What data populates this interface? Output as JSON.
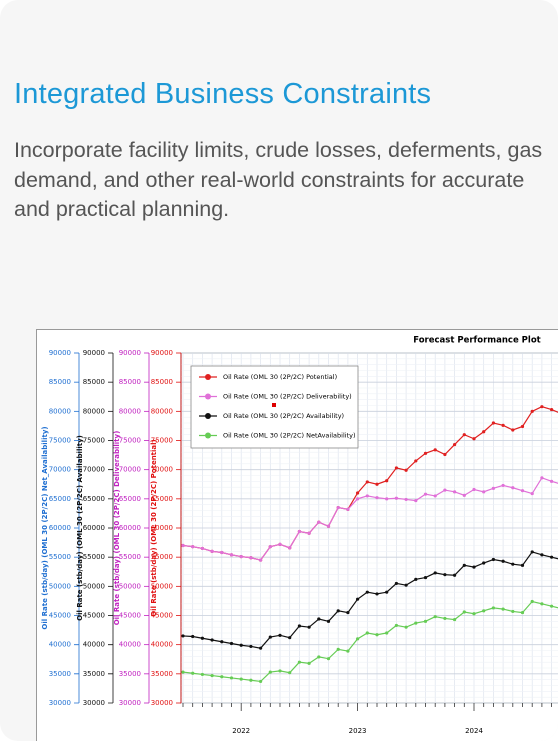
{
  "card": {
    "title": "Integrated Business Constraints",
    "description": "Incorporate facility limits, crude losses, deferments, gas demand, and other real-world constraints for accurate and practical planning."
  },
  "chart_data": {
    "type": "line",
    "title": "Forecast Performance Plot",
    "categories": [
      null,
      null,
      null,
      null,
      null,
      null,
      "2022",
      null,
      null,
      null,
      null,
      null,
      null,
      null,
      null,
      null,
      null,
      null,
      "2023",
      null,
      null,
      null,
      null,
      null,
      null,
      null,
      null,
      null,
      null,
      null,
      "2024",
      null,
      null,
      null,
      null,
      null,
      null,
      null,
      null,
      null
    ],
    "y_axes": [
      {
        "label": "Oil Rate (stb/day) (OML 30 (2P/2C) Net_Availability)",
        "color": "#1f6fd1",
        "ylim": [
          30000,
          90000
        ],
        "yticks": [
          30000,
          35000,
          40000,
          45000,
          50000,
          55000,
          60000,
          65000,
          70000,
          75000,
          80000,
          85000,
          90000
        ]
      },
      {
        "label": "Oil Rate (stb/day) (OML 30 (2P/2C) Availability)",
        "color": "#111111",
        "ylim": [
          30000,
          90000
        ],
        "yticks": [
          30000,
          35000,
          40000,
          45000,
          50000,
          55000,
          60000,
          65000,
          70000,
          75000,
          80000,
          85000,
          90000
        ]
      },
      {
        "label": "Oil Rate (stb/day) (OML 30 (2P/2C) Deliverability)",
        "color": "#c020c0",
        "ylim": [
          30000,
          90000
        ],
        "yticks": [
          30000,
          35000,
          40000,
          45000,
          50000,
          55000,
          60000,
          65000,
          70000,
          75000,
          80000,
          85000,
          90000
        ]
      },
      {
        "label": "Oil Rate (stb/day) (OML 30 (2P/2C) Potential)",
        "color": "#e01010",
        "ylim": [
          30000,
          90000
        ],
        "yticks": [
          30000,
          35000,
          40000,
          45000,
          50000,
          55000,
          60000,
          65000,
          70000,
          75000,
          80000,
          85000,
          90000
        ]
      }
    ],
    "grid": true,
    "series": [
      {
        "name": "Oil Rate (OML 30 (2P/2C) Potential)",
        "color": "#e02020",
        "values": [
          57000,
          56800,
          56500,
          56000,
          55800,
          55400,
          55100,
          54900,
          54500,
          56800,
          57200,
          56600,
          59400,
          59100,
          61000,
          60300,
          63500,
          63200,
          66000,
          67900,
          67500,
          68100,
          70300,
          69900,
          71500,
          72800,
          73400,
          72600,
          74300,
          76000,
          75300,
          76500,
          78000,
          77600,
          76800,
          77400,
          80000,
          80800,
          80300,
          79600
        ]
      },
      {
        "name": "Oil Rate (OML 30 (2P/2C) Deliverability)",
        "color": "#e070d8",
        "values": [
          57000,
          56800,
          56500,
          56000,
          55800,
          55400,
          55100,
          54900,
          54500,
          56800,
          57200,
          56600,
          59400,
          59100,
          61000,
          60300,
          63500,
          63200,
          65000,
          65500,
          65200,
          65000,
          65100,
          64900,
          64700,
          65800,
          65500,
          66500,
          66200,
          65600,
          66600,
          66200,
          66800,
          67300,
          66900,
          66400,
          65900,
          68600,
          68000,
          67500
        ]
      },
      {
        "name": "Oil Rate (OML 30 (2P/2C) Availability)",
        "color": "#111111",
        "values": [
          41500,
          41400,
          41100,
          40800,
          40500,
          40200,
          39900,
          39700,
          39400,
          41300,
          41600,
          41200,
          43200,
          43000,
          44400,
          44000,
          45800,
          45500,
          47800,
          49000,
          48700,
          49000,
          50500,
          50200,
          51200,
          51500,
          52300,
          52000,
          51900,
          53600,
          53300,
          54000,
          54600,
          54300,
          53800,
          53600,
          55900,
          55400,
          55000,
          54600
        ]
      },
      {
        "name": "Oil Rate (OML 30 (2P/2C) NetAvailability)",
        "color": "#66cc55",
        "values": [
          35300,
          35100,
          34900,
          34700,
          34500,
          34300,
          34100,
          33900,
          33700,
          35300,
          35500,
          35200,
          37000,
          36800,
          37900,
          37600,
          39200,
          38900,
          41000,
          42000,
          41700,
          42000,
          43300,
          43000,
          43700,
          44000,
          44800,
          44500,
          44300,
          45600,
          45300,
          45800,
          46300,
          46100,
          45700,
          45500,
          47400,
          47000,
          46600,
          46200
        ]
      }
    ]
  }
}
